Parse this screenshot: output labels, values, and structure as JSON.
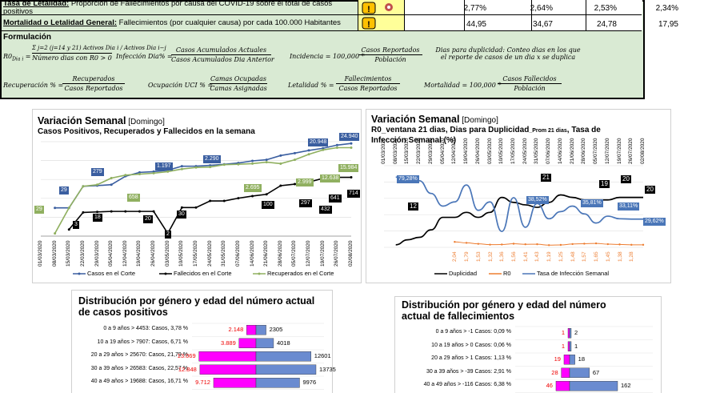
{
  "table": {
    "rows": [
      {
        "label": "Tasa de Letalidad:",
        "desc": "Proporción de Fallecimientos por causa del COVID-19 sobre el total de casos positivos",
        "values": [
          "2,77%",
          "2,64%",
          "2,53%",
          "2,34%"
        ]
      },
      {
        "label": "Mortalidad o Letalidad General:",
        "desc": "Fallecimientos (por cualquier causa) por cada 100.000 Habitantes",
        "values": [
          "44,95",
          "34,67",
          "24,78",
          "17,95"
        ]
      }
    ],
    "formula_label": "Formulación",
    "formulas": {
      "r0_lhs": "R0",
      "r0_sub": "Dia i",
      "r0_num": "Σ j=2 (j=14 y 21) Activos Dia i / Activos Dia i−j",
      "r0_den": "Número dias con R0 > 0",
      "inf_lhs": "Infección Dia% =",
      "inf_num": "Casos Acumulados Actuales",
      "inf_den": "Casos Acumulados Dia Anterior",
      "inc_lhs": "Incidencia = 100,000 *",
      "inc_num": "Casos Reportados",
      "inc_den": "Población",
      "dup_note1": "Dias para duplicidad: Conteo dias en los que",
      "dup_note2": "el reporte de casos de un dia x se duplica",
      "rec_lhs": "Recuperación % =",
      "rec_num": "Recuperados",
      "rec_den": "Casos Reportados",
      "uci_lhs": "Ocupación UCI % =",
      "uci_num": "Camas Ocupadas",
      "uci_den": "Camas Asignadas",
      "let_lhs": "Letalidad % =",
      "let_num": "Fallecimientos",
      "let_den": "Casos Reportados",
      "mort_lhs": "Mortalidad = 100,000 *",
      "mort_num": "Casos Fallecidos",
      "mort_den": "Población"
    }
  },
  "chart_data": [
    {
      "type": "line",
      "title_big": "Variación Semanal",
      "title_suffix": "[Domingo]",
      "subtitle": "Casos Positivos, Recuperados y Fallecidos en la semana",
      "x": [
        "01/03/2020",
        "08/03/2020",
        "15/03/2020",
        "22/03/2020",
        "29/03/2020",
        "05/04/2020",
        "12/04/2020",
        "19/04/2020",
        "26/04/2020",
        "03/05/2020",
        "10/05/2020",
        "17/05/2020",
        "24/05/2020",
        "31/05/2020",
        "07/06/2020",
        "14/06/2020",
        "21/06/2020",
        "28/06/2020",
        "05/07/2020",
        "12/07/2020",
        "19/07/2020",
        "26/07/2020",
        "02/08/2020"
      ],
      "series": [
        {
          "name": "Casos en el Corte",
          "color": "#3a5ea0",
          "values": [
            null,
            29,
            29,
            279,
            300,
            330,
            800,
            1197,
            1300,
            1500,
            2290,
            2300,
            2500,
            2800,
            3200,
            4000,
            4500,
            7000,
            9000,
            12000,
            15000,
            20948,
            24940
          ]
        },
        {
          "name": "Fallecidos en el Corte",
          "color": "#000000",
          "values": [
            null,
            null,
            3,
            18,
            19,
            20,
            20,
            20,
            20,
            2,
            30,
            30,
            60,
            60,
            80,
            100,
            120,
            297,
            350,
            432,
            641,
            714,
            714
          ]
        },
        {
          "name": "Recuperados en el Corte",
          "color": "#90b060",
          "values": [
            null,
            2,
            29,
            280,
            330,
            658,
            900,
            1000,
            1100,
            1300,
            1700,
            2000,
            2100,
            2695,
            2800,
            3000,
            3500,
            2999,
            4500,
            8000,
            12638,
            15984,
            15984
          ]
        }
      ],
      "labels": [
        "20.948",
        "24.940",
        "279",
        "1.197",
        "2.290",
        "29",
        "658",
        "2.695",
        "2.999",
        "12.638",
        "15.984",
        "29",
        "100",
        "297",
        "641",
        "714",
        "18",
        "3",
        "20",
        "30",
        "432",
        "2"
      ],
      "yscale": "log"
    },
    {
      "type": "line",
      "title_big": "Variación Semanal",
      "title_suffix": "[Domingo]",
      "subtitle1": "R0_ventana 21 dias, Dias para Duplicidad",
      "subtitle1_sub": "_Prom 21 dias",
      "subtitle1_tail": ", Tasa de",
      "subtitle2": "Infección Semanal (%)",
      "x": [
        "01/03/2020",
        "08/03/2020",
        "15/03/2020",
        "22/03/2020",
        "29/03/2020",
        "05/04/2020",
        "12/04/2020",
        "19/04/2020",
        "26/04/2020",
        "03/05/2020",
        "10/05/2020",
        "17/05/2020",
        "24/05/2020",
        "31/05/2020",
        "07/06/2020",
        "14/06/2020",
        "21/06/2020",
        "28/06/2020",
        "05/07/2020",
        "12/07/2020",
        "19/07/2020",
        "26/07/2020",
        "02/08/2020"
      ],
      "series": [
        {
          "name": "Duplicidad",
          "color": "#000000",
          "values": [
            null,
            1,
            3,
            4,
            7,
            12,
            12,
            14,
            12,
            14,
            20,
            18,
            17,
            16,
            18,
            21,
            20,
            19,
            19,
            19,
            20,
            20,
            20
          ]
        },
        {
          "name": "R0",
          "color": "#ed7d31",
          "values": [
            null,
            null,
            null,
            null,
            null,
            null,
            2.04,
            1.79,
            1.53,
            1.32,
            1.36,
            1.56,
            1.41,
            1.43,
            1.19,
            1.25,
            1.48,
            1.57,
            1.65,
            1.45,
            1.38,
            1.28,
            1.28
          ]
        },
        {
          "name": "Tasa de Infección Semanal",
          "color": "#4a76b8",
          "values": [
            null,
            79.28,
            79.28,
            75,
            60,
            45,
            50,
            70,
            40,
            50,
            15,
            55,
            20,
            48,
            30,
            38.52,
            45,
            35.81,
            25,
            33.11,
            30,
            29.62,
            29.62
          ]
        }
      ],
      "labels": [
        "79,28%",
        "38,52%",
        "35,81%",
        "33,11%",
        "29,62%",
        "12",
        "21",
        "19",
        "20",
        "20"
      ],
      "r0_labels": [
        "2,04",
        "1,79",
        "1,53",
        "1,32",
        "1,36",
        "1,56",
        "1,41",
        "1,43",
        "1,19",
        "1,25",
        "1,48",
        "1,57",
        "1,65",
        "1,45",
        "1,38",
        "1,28"
      ]
    },
    {
      "type": "bar",
      "title": "Distribución por género y edad del número actual de casos positivos",
      "categories": [
        "0 a 9 años > 4453: Casos, 3,78 %",
        "10 a 19 años > 7907: Casos, 6,71 %",
        "20 a 29 años > 25670: Casos, 21,79 %",
        "30 a 39 años > 26583: Casos, 22,57 %",
        "40 a 49 años > 19688: Casos, 16,71 %"
      ],
      "series": [
        {
          "name": "Mujeres",
          "color": "#ff00ff",
          "values": [
            2148,
            3889,
            13069,
            12848,
            9712
          ]
        },
        {
          "name": "Hombres",
          "color": "#6a8bd0",
          "values": [
            2305,
            4018,
            12601,
            13735,
            9976
          ]
        }
      ],
      "value_labels_left": [
        "2.148",
        "3.889",
        "13.069",
        "12.848",
        "9.712"
      ],
      "value_labels_right": [
        "2305",
        "4018",
        "12601",
        "13735",
        "9976"
      ]
    },
    {
      "type": "bar",
      "title": "Distribución por género y edad del número actual de fallecimientos",
      "categories": [
        "0 a 9 años > -1 Casos: 0,09 %",
        "10 a 19 años > 0 Casos: 0,06 %",
        "20 a 29 años > 1 Casos: 1,13 %",
        "30 a 39 años > -39 Casos: 2,91 %",
        "40 a 49 años > -116 Casos: 6,38 %"
      ],
      "series": [
        {
          "name": "Mujeres",
          "color": "#ff00ff",
          "values": [
            1,
            1,
            19,
            28,
            46
          ]
        },
        {
          "name": "Hombres",
          "color": "#6a8bd0",
          "values": [
            2,
            1,
            18,
            67,
            162
          ]
        }
      ],
      "value_labels_left": [
        "1",
        "1",
        "19",
        "28",
        "46"
      ],
      "value_labels_right": [
        "2",
        "1",
        "18",
        "67",
        "162"
      ]
    }
  ],
  "legend1": [
    "Casos en el Corte",
    "Fallecidos en el Corte",
    "Recuperados en el Corte"
  ],
  "legend2": [
    "Duplicidad",
    "R0",
    "Tasa de Infección Semanal"
  ]
}
